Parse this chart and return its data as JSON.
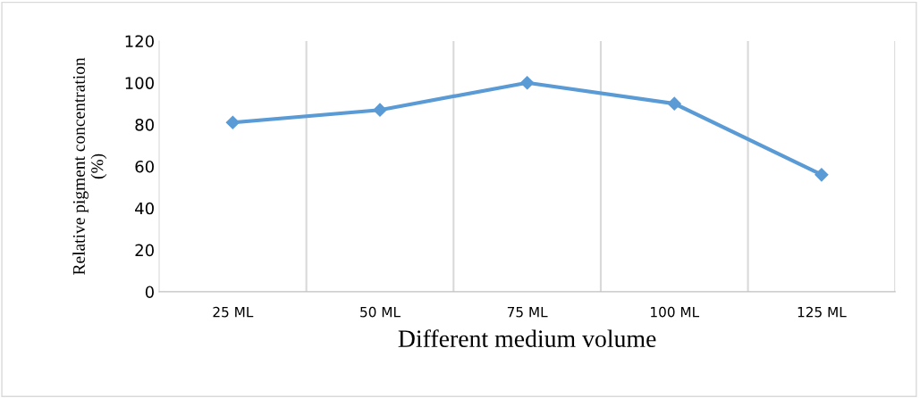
{
  "chart_data": {
    "type": "line",
    "xlabel": "Different medium volume",
    "ylabel": "Relative pigment concentration\n(%)",
    "categories": [
      "25 ML",
      "50 ML",
      "75 ML",
      "100 ML",
      "125 ML"
    ],
    "series": [
      {
        "color": "#5b9bd5",
        "values": [
          81,
          87,
          100,
          90,
          56
        ]
      }
    ],
    "ylim": [
      0,
      120
    ],
    "yticks": [
      0,
      20,
      40,
      60,
      80,
      100,
      120
    ],
    "grid": "x",
    "marker": "diamond",
    "line_style": "solid"
  }
}
